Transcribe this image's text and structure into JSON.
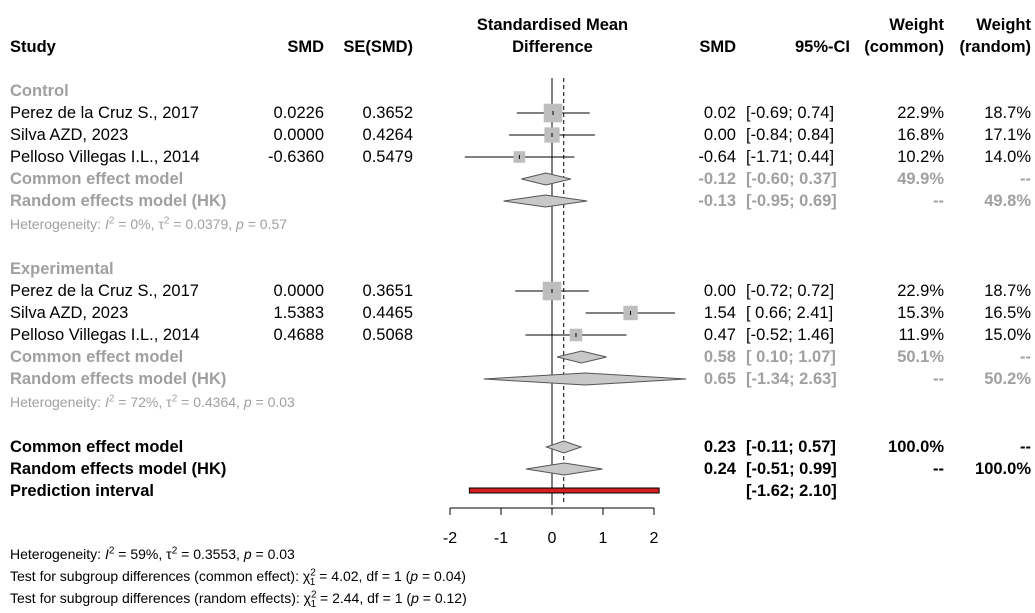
{
  "header": {
    "study": "Study",
    "smd": "SMD",
    "se_smd": "SE(SMD)",
    "plot_title_1": "Standardised Mean",
    "plot_title_2": "Difference",
    "smd2": "SMD",
    "ci": "95%-CI",
    "weight_common_1": "Weight",
    "weight_common_2": "(common)",
    "weight_random_1": "Weight",
    "weight_random_2": "(random)"
  },
  "chart_data": {
    "type": "forest",
    "xlim": [
      -2,
      2
    ],
    "ticks": [
      "-2",
      "-1",
      "0",
      "1",
      "2"
    ],
    "null_line": 0,
    "overall_line": 0.23,
    "groups": [
      {
        "name": "Control",
        "studies": [
          {
            "study": "Perez de la Cruz S., 2017",
            "smd": "0.0226",
            "se": "0.3652",
            "est": "0.02",
            "ci": "[-0.69; 0.74]",
            "w_common": "22.9%",
            "w_random": "18.7%",
            "x": 0.02,
            "lo": -0.69,
            "hi": 0.74,
            "weight": 22.9
          },
          {
            "study": "Silva AZD, 2023",
            "smd": "0.0000",
            "se": "0.4264",
            "est": "0.00",
            "ci": "[-0.84; 0.84]",
            "w_common": "16.8%",
            "w_random": "17.1%",
            "x": 0.0,
            "lo": -0.84,
            "hi": 0.84,
            "weight": 16.8
          },
          {
            "study": "Pelloso Villegas I.L., 2014",
            "smd": "-0.6360",
            "se": "0.5479",
            "est": "-0.64",
            "ci": "[-1.71; 0.44]",
            "w_common": "10.2%",
            "w_random": "14.0%",
            "x": -0.64,
            "lo": -1.71,
            "hi": 0.44,
            "weight": 10.2
          }
        ],
        "common": {
          "label": "Common effect model",
          "est": "-0.12",
          "ci": "[-0.60; 0.37]",
          "w_common": "49.9%",
          "w_random": "--",
          "x": -0.12,
          "lo": -0.6,
          "hi": 0.37
        },
        "random": {
          "label": "Random effects model (HK)",
          "est": "-0.13",
          "ci": "[-0.95; 0.69]",
          "w_common": "--",
          "w_random": "49.8%",
          "x": -0.13,
          "lo": -0.95,
          "hi": 0.69
        },
        "heterogeneity": {
          "prefix": "Heterogeneity: ",
          "i2": " = 0%, ",
          "tau2": " = 0.0379, ",
          "p": " = 0.57"
        }
      },
      {
        "name": "Experimental",
        "studies": [
          {
            "study": "Perez de la Cruz S., 2017",
            "smd": "0.0000",
            "se": "0.3651",
            "est": "0.00",
            "ci": "[-0.72; 0.72]",
            "w_common": "22.9%",
            "w_random": "18.7%",
            "x": 0.0,
            "lo": -0.72,
            "hi": 0.72,
            "weight": 22.9
          },
          {
            "study": "Silva AZD, 2023",
            "smd": "1.5383",
            "se": "0.4465",
            "est": "1.54",
            "ci": "[ 0.66; 2.41]",
            "w_common": "15.3%",
            "w_random": "16.5%",
            "x": 1.54,
            "lo": 0.66,
            "hi": 2.41,
            "weight": 15.3
          },
          {
            "study": "Pelloso Villegas I.L., 2014",
            "smd": "0.4688",
            "se": "0.5068",
            "est": "0.47",
            "ci": "[-0.52; 1.46]",
            "w_common": "11.9%",
            "w_random": "15.0%",
            "x": 0.47,
            "lo": -0.52,
            "hi": 1.46,
            "weight": 11.9
          }
        ],
        "common": {
          "label": "Common effect model",
          "est": "0.58",
          "ci": "[ 0.10; 1.07]",
          "w_common": "50.1%",
          "w_random": "--",
          "x": 0.58,
          "lo": 0.1,
          "hi": 1.07
        },
        "random": {
          "label": "Random effects model (HK)",
          "est": "0.65",
          "ci": "[-1.34; 2.63]",
          "w_common": "--",
          "w_random": "50.2%",
          "x": 0.65,
          "lo": -1.34,
          "hi": 2.63
        },
        "heterogeneity": {
          "prefix": "Heterogeneity: ",
          "i2": " = 72%, ",
          "tau2": " = 0.4364, ",
          "p": " = 0.03"
        }
      }
    ],
    "overall": {
      "common": {
        "label": "Common effect model",
        "est": "0.23",
        "ci": "[-0.11; 0.57]",
        "w_common": "100.0%",
        "w_random": "--",
        "x": 0.23,
        "lo": -0.11,
        "hi": 0.57
      },
      "random": {
        "label": "Random effects model (HK)",
        "est": "0.24",
        "ci": "[-0.51; 0.99]",
        "w_common": "--",
        "w_random": "100.0%",
        "x": 0.24,
        "lo": -0.51,
        "hi": 0.99
      },
      "prediction": {
        "label": "Prediction interval",
        "ci": "[-1.62; 2.10]",
        "lo": -1.62,
        "hi": 2.1
      }
    },
    "colors": {
      "subgroup_text": "#a0a0a0",
      "square": "#bebebe",
      "diamond_fill": "#c8c8c8",
      "prediction_bar": "#d42020"
    }
  },
  "footer": {
    "heterogeneity": {
      "prefix": "Heterogeneity: ",
      "i2": " = 59%, ",
      "tau2": " = 0.3553, ",
      "p": " = 0.03"
    },
    "test_common": {
      "prefix": "Test for subgroup differences (common effect): ",
      "chi": " = 4.02, df = 1 (",
      "p": " = 0.04)"
    },
    "test_random": {
      "prefix": "Test for subgroup differences (random effects): ",
      "chi": " = 2.44, df = 1 (",
      "p": " = 0.12)"
    }
  }
}
